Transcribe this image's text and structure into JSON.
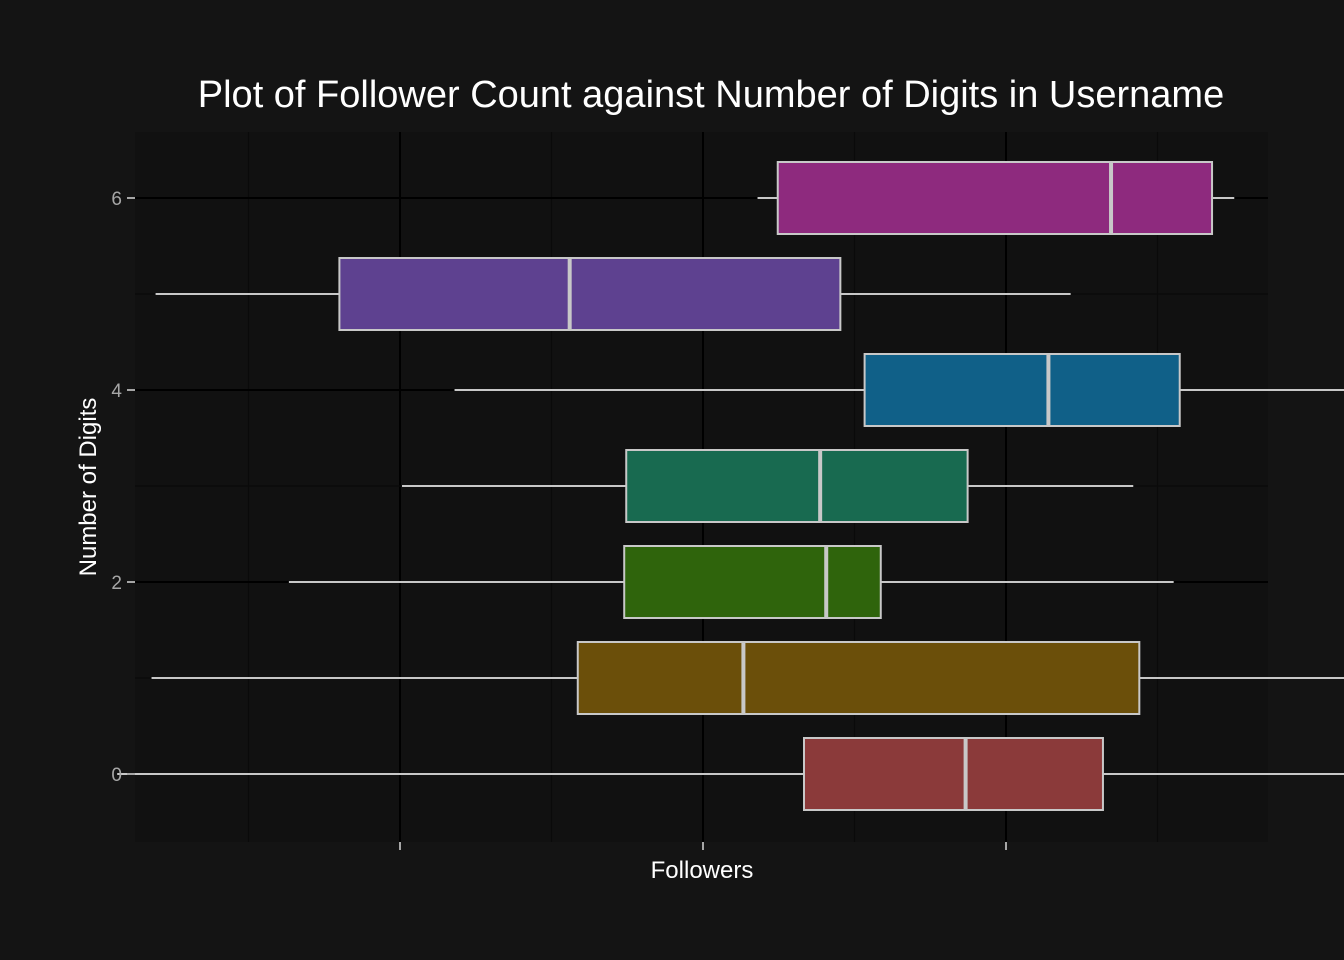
{
  "chart_data": {
    "type": "boxplot",
    "orientation": "horizontal",
    "title": "Plot of Follower Count against Number of Digits in Username",
    "xlabel": "Followers",
    "ylabel": "Number of Digits",
    "x_tick_labels_shown": false,
    "ylim": [
      -0.7,
      6.6
    ],
    "y_ticks": [
      0,
      2,
      4,
      6
    ],
    "grid": true,
    "legend": "none",
    "background": "#141414",
    "panel_background": "#111111",
    "box_outline_color": "#c8c8c8",
    "boxes": [
      {
        "digits": 0,
        "whisker_low": 0.35,
        "q1": 3.75,
        "median": 4.55,
        "q3": 5.23,
        "whisker_high": 7.14,
        "color": "#8b3a3a"
      },
      {
        "digits": 1,
        "whisker_low": 0.52,
        "q1": 2.63,
        "median": 3.45,
        "q3": 5.41,
        "whisker_high": 6.44,
        "color": "#6b4f0a"
      },
      {
        "digits": 2,
        "whisker_low": 1.2,
        "q1": 2.86,
        "median": 3.86,
        "q3": 4.13,
        "whisker_high": 5.58,
        "color": "#2f640c"
      },
      {
        "digits": 3,
        "whisker_low": 1.76,
        "q1": 2.87,
        "median": 3.83,
        "q3": 4.56,
        "whisker_high": 5.38,
        "color": "#186a50"
      },
      {
        "digits": 4,
        "whisker_low": 2.02,
        "q1": 4.05,
        "median": 4.96,
        "q3": 5.61,
        "whisker_high": 7.06,
        "color": "#106088"
      },
      {
        "digits": 5,
        "whisker_low": 0.54,
        "q1": 1.45,
        "median": 2.59,
        "q3": 3.93,
        "whisker_high": 5.07,
        "color": "#5e4190"
      },
      {
        "digits": 6,
        "whisker_low": 3.52,
        "q1": 3.62,
        "median": 5.27,
        "q3": 5.77,
        "whisker_high": 5.88,
        "color": "#8e2a7e"
      }
    ]
  }
}
